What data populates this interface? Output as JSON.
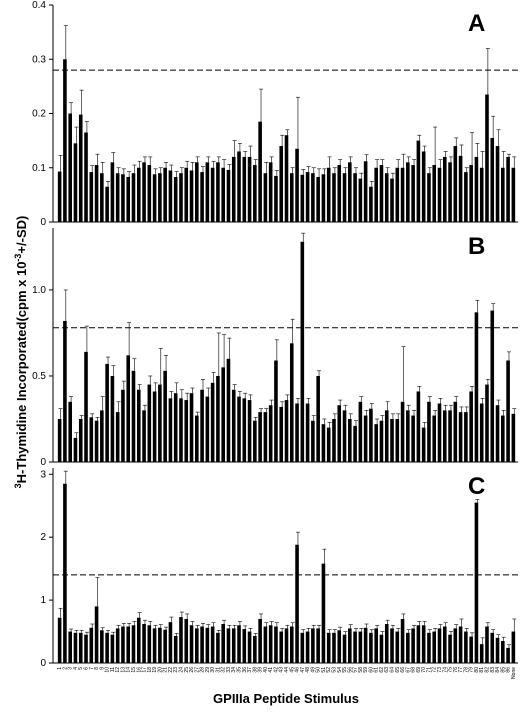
{
  "figure": {
    "ylabel_sup": "3",
    "ylabel_main": "H-Thymidine Incorporated(cpm x 10",
    "ylabel_exp": "-3",
    "ylabel_tail": "+/-SD)",
    "xlabel": "GPIIIa Peptide Stimulus"
  },
  "chart_data": [
    {
      "type": "bar",
      "panel": "A",
      "ylim": [
        0,
        0.4
      ],
      "yticks": [
        "0",
        "0.1",
        "0.2",
        "0.3",
        "0.4"
      ],
      "ytick_values": [
        0,
        0.1,
        0.2,
        0.3,
        0.4
      ],
      "threshold": 0.28,
      "categories": [
        "1",
        "2",
        "3",
        "4",
        "5",
        "6",
        "7",
        "8",
        "9",
        "10",
        "11",
        "12",
        "13",
        "14",
        "15",
        "16",
        "17",
        "18",
        "19",
        "20",
        "21",
        "22",
        "23",
        "24",
        "25",
        "26",
        "27",
        "28",
        "29",
        "30",
        "31",
        "32",
        "33",
        "34",
        "35",
        "36",
        "37",
        "38",
        "39",
        "40",
        "41",
        "42",
        "43",
        "44",
        "45",
        "46",
        "47",
        "48",
        "49",
        "50",
        "51",
        "52",
        "53",
        "54",
        "55",
        "56",
        "57",
        "58",
        "59",
        "60",
        "61",
        "62",
        "63",
        "64",
        "65",
        "66",
        "67",
        "68",
        "69",
        "70",
        "71",
        "72",
        "73",
        "74",
        "75",
        "76",
        "77",
        "78",
        "79",
        "80",
        "81",
        "82",
        "83",
        "84",
        "85",
        "86",
        "None"
      ],
      "values": [
        0.093,
        0.3,
        0.2,
        0.145,
        0.198,
        0.165,
        0.092,
        0.105,
        0.09,
        0.065,
        0.11,
        0.09,
        0.088,
        0.083,
        0.09,
        0.1,
        0.11,
        0.105,
        0.088,
        0.09,
        0.1,
        0.095,
        0.083,
        0.09,
        0.1,
        0.095,
        0.11,
        0.092,
        0.11,
        0.1,
        0.11,
        0.1,
        0.096,
        0.12,
        0.13,
        0.12,
        0.12,
        0.105,
        0.185,
        0.09,
        0.11,
        0.085,
        0.14,
        0.16,
        0.09,
        0.135,
        0.087,
        0.092,
        0.09,
        0.083,
        0.088,
        0.1,
        0.09,
        0.105,
        0.09,
        0.11,
        0.09,
        0.08,
        0.112,
        0.065,
        0.1,
        0.105,
        0.09,
        0.08,
        0.1,
        0.1,
        0.11,
        0.105,
        0.15,
        0.13,
        0.09,
        0.105,
        0.1,
        0.12,
        0.11,
        0.14,
        0.122,
        0.092,
        0.105,
        0.12,
        0.1,
        0.235,
        0.155,
        0.14,
        0.1,
        0.12,
        0.1
      ],
      "errors": [
        0.03,
        0.062,
        0.02,
        0.03,
        0.045,
        0.02,
        0.012,
        0.02,
        0.02,
        0.01,
        0.018,
        0.01,
        0.01,
        0.01,
        0.015,
        0.012,
        0.01,
        0.015,
        0.01,
        0.01,
        0.01,
        0.01,
        0.01,
        0.01,
        0.012,
        0.015,
        0.01,
        0.01,
        0.01,
        0.012,
        0.01,
        0.015,
        0.01,
        0.03,
        0.015,
        0.01,
        0.02,
        0.01,
        0.06,
        0.02,
        0.01,
        0.01,
        0.02,
        0.01,
        0.01,
        0.095,
        0.01,
        0.01,
        0.01,
        0.015,
        0.01,
        0.02,
        0.01,
        0.01,
        0.01,
        0.01,
        0.01,
        0.01,
        0.012,
        0.01,
        0.015,
        0.01,
        0.01,
        0.01,
        0.015,
        0.025,
        0.01,
        0.01,
        0.01,
        0.01,
        0.01,
        0.07,
        0.015,
        0.01,
        0.01,
        0.015,
        0.02,
        0.008,
        0.06,
        0.025,
        0.03,
        0.085,
        0.04,
        0.03,
        0.03,
        0.005,
        0.02
      ]
    },
    {
      "type": "bar",
      "panel": "B",
      "ylim": [
        0,
        1.36
      ],
      "yticks": [
        "0",
        "0.5",
        "1.0"
      ],
      "ytick_values": [
        0,
        0.5,
        1.0
      ],
      "threshold": 0.78,
      "categories": [
        "1",
        "2",
        "3",
        "4",
        "5",
        "6",
        "7",
        "8",
        "9",
        "10",
        "11",
        "12",
        "13",
        "14",
        "15",
        "16",
        "17",
        "18",
        "19",
        "20",
        "21",
        "22",
        "23",
        "24",
        "25",
        "26",
        "27",
        "28",
        "29",
        "30",
        "31",
        "32",
        "33",
        "34",
        "35",
        "36",
        "37",
        "38",
        "39",
        "40",
        "41",
        "42",
        "43",
        "44",
        "45",
        "46",
        "47",
        "48",
        "49",
        "50",
        "51",
        "52",
        "53",
        "54",
        "55",
        "56",
        "57",
        "58",
        "59",
        "60",
        "61",
        "62",
        "63",
        "64",
        "65",
        "66",
        "67",
        "68",
        "69",
        "70",
        "71",
        "72",
        "73",
        "74",
        "75",
        "76",
        "77",
        "78",
        "79",
        "80",
        "81",
        "82",
        "83",
        "84",
        "85",
        "86",
        "None"
      ],
      "values": [
        0.25,
        0.82,
        0.35,
        0.14,
        0.25,
        0.64,
        0.26,
        0.24,
        0.3,
        0.57,
        0.5,
        0.29,
        0.42,
        0.62,
        0.53,
        0.42,
        0.3,
        0.45,
        0.41,
        0.45,
        0.53,
        0.37,
        0.4,
        0.37,
        0.36,
        0.4,
        0.27,
        0.42,
        0.38,
        0.46,
        0.5,
        0.55,
        0.6,
        0.42,
        0.38,
        0.37,
        0.36,
        0.24,
        0.29,
        0.29,
        0.33,
        0.59,
        0.32,
        0.36,
        0.69,
        0.34,
        1.28,
        0.34,
        0.24,
        0.5,
        0.22,
        0.2,
        0.25,
        0.33,
        0.3,
        0.25,
        0.21,
        0.35,
        0.27,
        0.31,
        0.22,
        0.24,
        0.3,
        0.25,
        0.25,
        0.35,
        0.3,
        0.27,
        0.41,
        0.2,
        0.35,
        0.27,
        0.34,
        0.3,
        0.3,
        0.35,
        0.29,
        0.29,
        0.41,
        0.87,
        0.34,
        0.45,
        0.88,
        0.33,
        0.27,
        0.59,
        0.28
      ],
      "errors": [
        0.06,
        0.18,
        0.03,
        0.03,
        0.02,
        0.15,
        0.02,
        0.02,
        0.08,
        0.04,
        0.06,
        0.06,
        0.05,
        0.19,
        0.07,
        0.03,
        0.03,
        0.05,
        0.05,
        0.21,
        0.09,
        0.04,
        0.06,
        0.05,
        0.04,
        0.03,
        0.02,
        0.06,
        0.05,
        0.06,
        0.25,
        0.19,
        0.12,
        0.03,
        0.03,
        0.03,
        0.03,
        0.02,
        0.02,
        0.02,
        0.03,
        0.12,
        0.03,
        0.03,
        0.14,
        0.03,
        0.05,
        0.03,
        0.03,
        0.03,
        0.03,
        0.03,
        0.03,
        0.03,
        0.03,
        0.03,
        0.03,
        0.03,
        0.03,
        0.03,
        0.03,
        0.03,
        0.05,
        0.03,
        0.03,
        0.32,
        0.03,
        0.03,
        0.03,
        0.03,
        0.03,
        0.03,
        0.03,
        0.03,
        0.03,
        0.03,
        0.03,
        0.03,
        0.03,
        0.07,
        0.03,
        0.03,
        0.04,
        0.03,
        0.03,
        0.05,
        0.03
      ]
    },
    {
      "type": "bar",
      "panel": "C",
      "ylim": [
        0,
        3.1
      ],
      "yticks": [
        "0",
        "1",
        "2",
        "3"
      ],
      "ytick_values": [
        0,
        1,
        2,
        3
      ],
      "threshold": 1.4,
      "categories": [
        "1",
        "2",
        "3",
        "4",
        "5",
        "6",
        "7",
        "8",
        "9",
        "10",
        "11",
        "12",
        "13",
        "14",
        "15",
        "16",
        "17",
        "18",
        "19",
        "20",
        "21",
        "22",
        "23",
        "24",
        "25",
        "26",
        "27",
        "28",
        "29",
        "30",
        "31",
        "32",
        "33",
        "34",
        "35",
        "36",
        "37",
        "38",
        "39",
        "40",
        "41",
        "42",
        "43",
        "44",
        "45",
        "46",
        "47",
        "48",
        "49",
        "50",
        "51",
        "52",
        "53",
        "54",
        "55",
        "56",
        "57",
        "58",
        "59",
        "60",
        "61",
        "62",
        "63",
        "64",
        "65",
        "66",
        "67",
        "68",
        "69",
        "70",
        "71",
        "72",
        "73",
        "74",
        "75",
        "76",
        "77",
        "78",
        "79",
        "80",
        "81",
        "82",
        "83",
        "84",
        "85",
        "86",
        "None"
      ],
      "values": [
        0.72,
        2.85,
        0.5,
        0.48,
        0.48,
        0.45,
        0.56,
        0.9,
        0.52,
        0.48,
        0.45,
        0.55,
        0.58,
        0.58,
        0.6,
        0.72,
        0.62,
        0.6,
        0.55,
        0.56,
        0.53,
        0.65,
        0.43,
        0.73,
        0.7,
        0.6,
        0.55,
        0.58,
        0.56,
        0.58,
        0.48,
        0.62,
        0.55,
        0.55,
        0.6,
        0.54,
        0.5,
        0.43,
        0.7,
        0.58,
        0.6,
        0.58,
        0.5,
        0.55,
        0.58,
        1.88,
        0.48,
        0.5,
        0.55,
        0.55,
        1.58,
        0.48,
        0.48,
        0.52,
        0.45,
        0.55,
        0.5,
        0.5,
        0.56,
        0.48,
        0.55,
        0.45,
        0.62,
        0.55,
        0.5,
        0.7,
        0.48,
        0.55,
        0.6,
        0.6,
        0.48,
        0.5,
        0.55,
        0.58,
        0.45,
        0.55,
        0.58,
        0.5,
        0.42,
        2.55,
        0.3,
        0.58,
        0.48,
        0.4,
        0.35,
        0.24,
        0.5
      ],
      "errors": [
        0.15,
        0.2,
        0.04,
        0.04,
        0.04,
        0.04,
        0.06,
        0.46,
        0.04,
        0.04,
        0.04,
        0.05,
        0.05,
        0.05,
        0.06,
        0.08,
        0.06,
        0.06,
        0.05,
        0.05,
        0.04,
        0.08,
        0.04,
        0.08,
        0.08,
        0.06,
        0.05,
        0.05,
        0.05,
        0.06,
        0.04,
        0.06,
        0.05,
        0.05,
        0.06,
        0.05,
        0.05,
        0.04,
        0.08,
        0.06,
        0.06,
        0.06,
        0.05,
        0.05,
        0.06,
        0.2,
        0.05,
        0.05,
        0.05,
        0.05,
        0.23,
        0.05,
        0.05,
        0.05,
        0.05,
        0.06,
        0.05,
        0.05,
        0.06,
        0.05,
        0.05,
        0.05,
        0.06,
        0.05,
        0.05,
        0.08,
        0.05,
        0.05,
        0.06,
        0.06,
        0.05,
        0.05,
        0.06,
        0.06,
        0.05,
        0.06,
        0.12,
        0.05,
        0.06,
        0.05,
        0.1,
        0.06,
        0.05,
        0.05,
        0.06,
        0.05,
        0.2
      ]
    }
  ]
}
